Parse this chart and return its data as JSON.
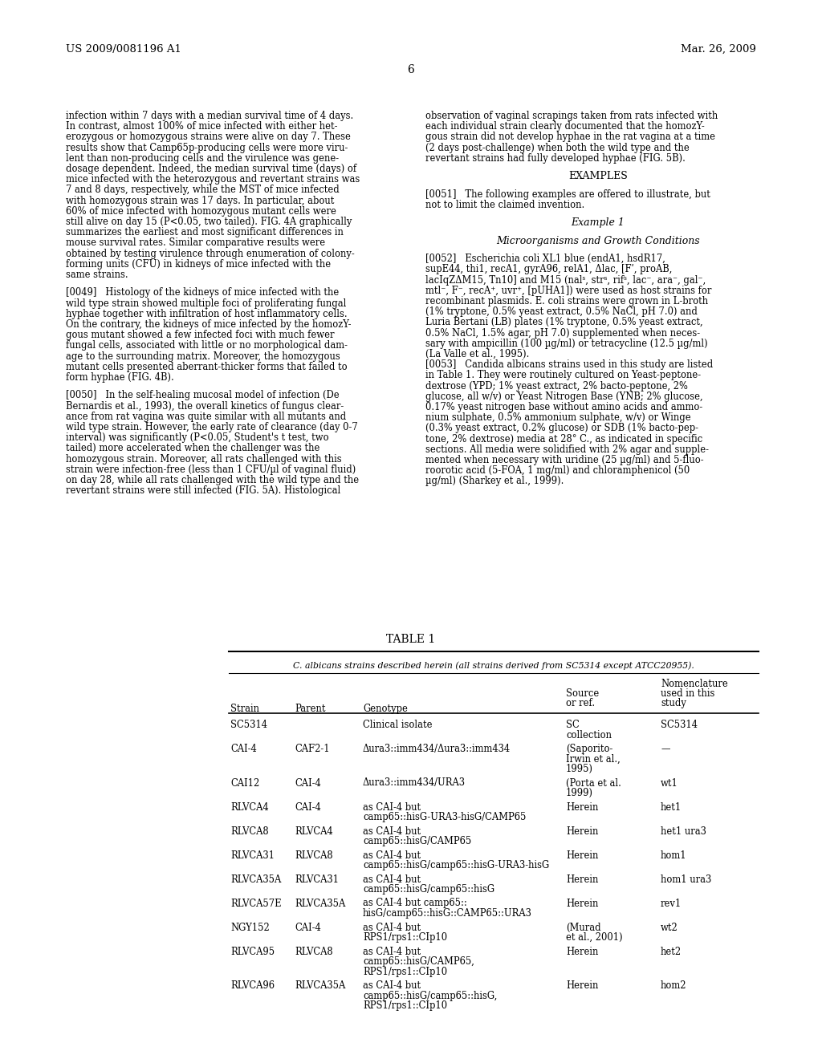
{
  "background_color": "#ffffff",
  "header_left": "US 2009/0081196 A1",
  "header_right": "Mar. 26, 2009",
  "page_number": "6",
  "left_column": [
    "infection within 7 days with a median survival time of 4 days.",
    "In contrast, almost 100% of mice infected with either het-",
    "erozygous or homozygous strains were alive on day 7. These",
    "results show that Camp65p-producing cells were more viru-",
    "lent than non-producing cells and the virulence was gene-",
    "dosage dependent. Indeed, the median survival time (days) of",
    "mice infected with the heterozygous and revertant strains was",
    "7 and 8 days, respectively, while the MST of mice infected",
    "with homozygous strain was 17 days. In particular, about",
    "60% of mice infected with homozygous mutant cells were",
    "still alive on day 15 (P<0.05, two tailed). FIG. 4A graphically",
    "summarizes the earliest and most significant differences in",
    "mouse survival rates. Similar comparative results were",
    "obtained by testing virulence through enumeration of colony-",
    "forming units (CFU) in kidneys of mice infected with the",
    "same strains.",
    "",
    "[0049]   Histology of the kidneys of mice infected with the",
    "wild type strain showed multiple foci of proliferating fungal",
    "hyphae together with infiltration of host inflammatory cells.",
    "On the contrary, the kidneys of mice infected by the homozY-",
    "gous mutant showed a few infected foci with much fewer",
    "fungal cells, associated with little or no morphological dam-",
    "age to the surrounding matrix. Moreover, the homozygous",
    "mutant cells presented aberrant-thicker forms that failed to",
    "form hyphae (FIG. 4B).",
    "",
    "[0050]   In the self-healing mucosal model of infection (De",
    "Bernardis et al., 1993), the overall kinetics of fungus clear-",
    "ance from rat vagina was quite similar with all mutants and",
    "wild type strain. However, the early rate of clearance (day 0-7",
    "interval) was significantly (P<0.05, Student's t test, two",
    "tailed) more accelerated when the challenger was the",
    "homozygous strain. Moreover, all rats challenged with this",
    "strain were infection-free (less than 1 CFU/µl of vaginal fluid)",
    "on day 28, while all rats challenged with the wild type and the",
    "revertant strains were still infected (FIG. 5A). Histological"
  ],
  "right_column": [
    "observation of vaginal scrapings taken from rats infected with",
    "each individual strain clearly documented that the homozY-",
    "gous strain did not develop hyphae in the rat vagina at a time",
    "(2 days post-challenge) when both the wild type and the",
    "revertant strains had fully developed hyphae (FIG. 5B).",
    "",
    "EXAMPLES",
    "",
    "[0051]   The following examples are offered to illustrate, but",
    "not to limit the claimed invention.",
    "",
    "Example 1",
    "",
    "Microorganisms and Growth Conditions",
    "",
    "[0052]   Escherichia coli XL1 blue (endA1, hsdR17,",
    "supE44, thi1, recA1, gyrA96, relA1, Δlac, [Fʹ, proAB,",
    "lacIqZΔM15, Tn10] and M15 (nalˢ, strˢ, rifˢ, lac⁻, ara⁻, gal⁻,",
    "mtl⁻, F⁻, recA⁺, uvr⁺, [pUHA1]) were used as host strains for",
    "recombinant plasmids. E. coli strains were grown in L-broth",
    "(1% tryptone, 0.5% yeast extract, 0.5% NaCl, pH 7.0) and",
    "Luria Bertani (LB) plates (1% tryptone, 0.5% yeast extract,",
    "0.5% NaCl, 1.5% agar, pH 7.0) supplemented when neces-",
    "sary with ampicillin (100 µg/ml) or tetracycline (12.5 µg/ml)",
    "(La Valle et al., 1995).",
    "[0053]   Candida albicans strains used in this study are listed",
    "in Table 1. They were routinely cultured on Yeast-peptone-",
    "dextrose (YPD; 1% yeast extract, 2% bacto-peptone, 2%",
    "glucose, all w/v) or Yeast Nitrogen Base (YNB; 2% glucose,",
    "0.17% yeast nitrogen base without amino acids and ammo-",
    "nium sulphate, 0.5% ammonium sulphate, w/v) or Winge",
    "(0.3% yeast extract, 0.2% glucose) or SDB (1% bacto-pep-",
    "tone, 2% dextrose) media at 28° C., as indicated in specific",
    "sections. All media were solidified with 2% agar and supple-",
    "mented when necessary with uridine (25 µg/ml) and 5-fluo-",
    "roorotic acid (5-FOA, 1 mg/ml) and chloramphenicol (50",
    "µg/ml) (Sharkey et al., 1999)."
  ],
  "table_title": "TABLE 1",
  "table_subtitle": "C. albicans strains described herein (all strains derived from SC5314 except ATCC20955).",
  "table_headers": [
    "Strain",
    "Parent",
    "Genotype",
    "Source\nor ref.",
    "Nomenclature\nused in this\nstudy"
  ],
  "table_rows": [
    [
      "SC5314",
      "",
      "Clinical isolate",
      "SC\ncollection",
      "SC5314"
    ],
    [
      "CAI-4",
      "CAF2-1",
      "Δura3::imm434/Δura3::imm434",
      "(Saporito-\nIrwin et al.,\n1995)",
      "—"
    ],
    [
      "CAI12",
      "CAI-4",
      "Δura3::imm434/URA3",
      "(Porta et al.\n1999)",
      "wt1"
    ],
    [
      "RLVCA4",
      "CAI-4",
      "as CAI-4 but\ncamp65::hisG-URA3-hisG/CAMP65",
      "Herein",
      "het1"
    ],
    [
      "RLVCA8",
      "RLVCA4",
      "as CAI-4 but\ncamp65::hisG/CAMP65",
      "Herein",
      "het1 ura3"
    ],
    [
      "RLVCA31",
      "RLVCA8",
      "as CAI-4 but\ncamp65::hisG/camp65::hisG-URA3-hisG",
      "Herein",
      "hom1"
    ],
    [
      "RLVCA35A",
      "RLVCA31",
      "as CAI-4 but\ncamp65::hisG/camp65::hisG",
      "Herein",
      "hom1 ura3"
    ],
    [
      "RLVCA57E",
      "RLVCA35A",
      "as CAI-4 but camp65::\nhisG/camp65::hisG::CAMP65::URA3",
      "Herein",
      "rev1"
    ],
    [
      "NGY152",
      "CAI-4",
      "as CAI-4 but\nRPS1/rps1::CIp10",
      "(Murad\net al., 2001)",
      "wt2"
    ],
    [
      "RLVCA95",
      "RLVCA8",
      "as CAI-4 but\ncamp65::hisG/CAMP65,\nRPS1/rps1::CIp10",
      "Herein",
      "het2"
    ],
    [
      "RLVCA96",
      "RLVCA35A",
      "as CAI-4 but\ncamp65::hisG/camp65::hisG,\nRPS1/rps1::CIp10",
      "Herein",
      "hom2"
    ]
  ]
}
